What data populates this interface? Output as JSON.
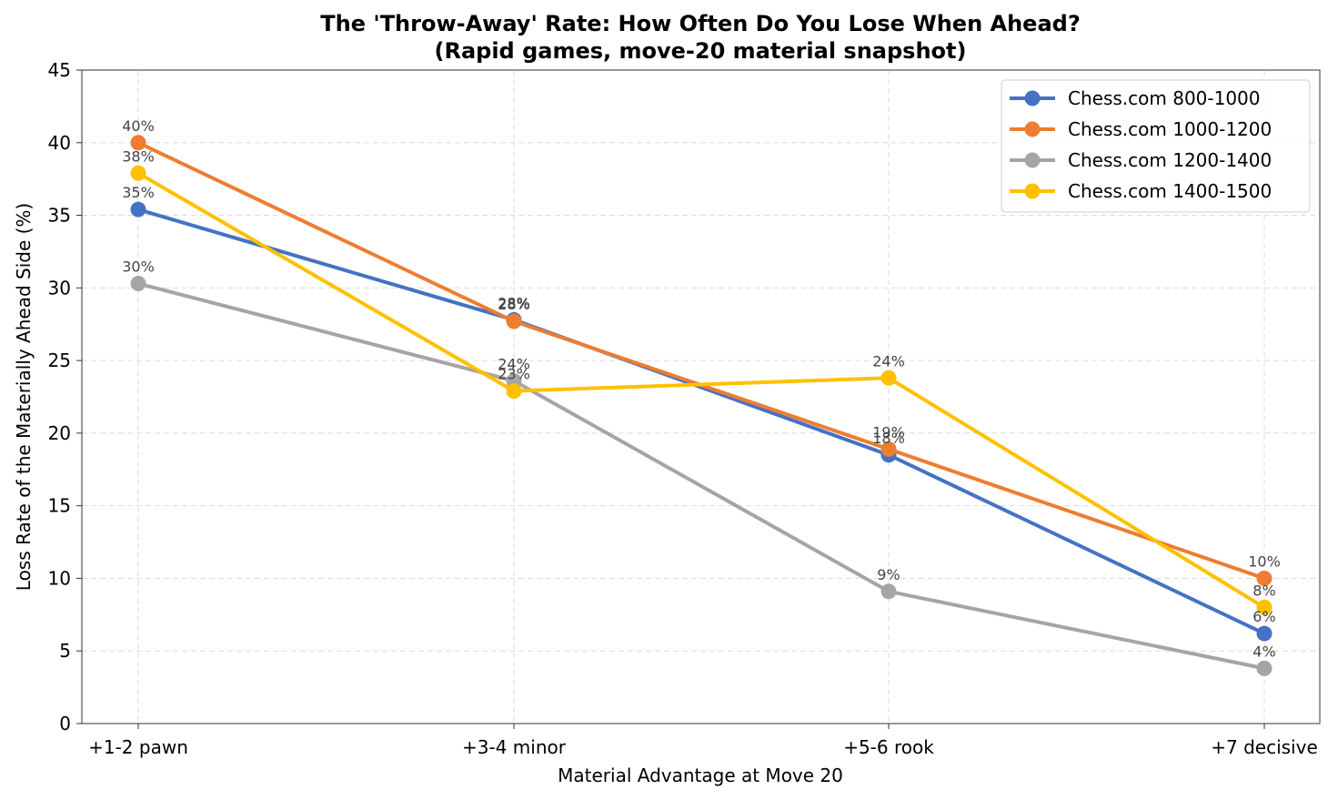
{
  "chart_data": {
    "type": "line",
    "title": "The 'Throw-Away' Rate: How Often Do You Lose When Ahead?",
    "subtitle": "(Rapid games, move-20 material snapshot)",
    "xlabel": "Material Advantage at Move 20",
    "ylabel": "Loss Rate of the Materially Ahead Side (%)",
    "categories": [
      "+1-2 pawn",
      "+3-4 minor",
      "+5-6 rook",
      "+7 decisive"
    ],
    "ylim": [
      0,
      45
    ],
    "yticks": [
      0,
      5,
      10,
      15,
      20,
      25,
      30,
      35,
      40,
      45
    ],
    "grid": true,
    "legend_position": "top-right",
    "series": [
      {
        "name": "Chess.com 800-1000",
        "color": "#4472C4",
        "values": [
          35.4,
          27.8,
          18.5,
          6.2
        ],
        "labels": [
          "35%",
          "28%",
          "18%",
          "6%"
        ]
      },
      {
        "name": "Chess.com 1000-1200",
        "color": "#ED7D31",
        "values": [
          40.0,
          27.7,
          18.9,
          10.0
        ],
        "labels": [
          "40%",
          "28%",
          "19%",
          "10%"
        ]
      },
      {
        "name": "Chess.com 1200-1400",
        "color": "#A5A5A5",
        "values": [
          30.3,
          23.6,
          9.1,
          3.8
        ],
        "labels": [
          "30%",
          "24%",
          "9%",
          "4%"
        ]
      },
      {
        "name": "Chess.com 1400-1500",
        "color": "#FFC000",
        "values": [
          37.9,
          22.9,
          23.8,
          8.0
        ],
        "labels": [
          "38%",
          "23%",
          "24%",
          "8%"
        ]
      }
    ]
  }
}
